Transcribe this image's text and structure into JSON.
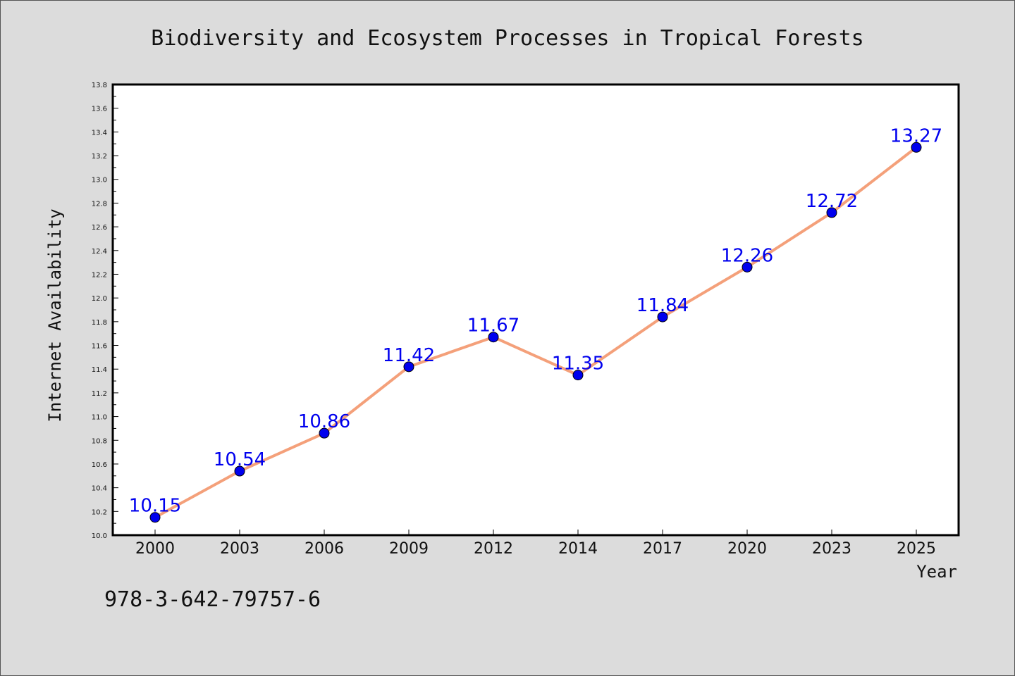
{
  "chart_data": {
    "type": "line",
    "title": "Biodiversity and Ecosystem Processes in Tropical Forests",
    "xlabel": "Year",
    "ylabel": "Internet Availability",
    "categories": [
      "2000",
      "2003",
      "2006",
      "2009",
      "2012",
      "2014",
      "2017",
      "2020",
      "2023",
      "2025"
    ],
    "series": [
      {
        "values": [
          10.15,
          10.54,
          10.86,
          11.42,
          11.67,
          11.35,
          11.84,
          12.26,
          12.72,
          13.27
        ],
        "labels": [
          "10.15",
          "10.54",
          "10.86",
          "11.42",
          "11.67",
          "11.35",
          "11.84",
          "12.26",
          "12.72",
          "13.27"
        ],
        "line_color": "#f4a07a",
        "marker_color": "#0000ee"
      }
    ],
    "ylim": [
      10.0,
      13.8
    ],
    "yticks": [
      "10.0",
      "10.2",
      "10.4",
      "10.6",
      "10.8",
      "11.0",
      "11.2",
      "11.4",
      "11.6",
      "11.8",
      "12.0",
      "12.2",
      "12.4",
      "12.6",
      "12.8",
      "13.0",
      "13.2",
      "13.4",
      "13.6",
      "13.8"
    ],
    "grid": false,
    "label_color": "#0000ee"
  },
  "footer": {
    "isbn": "978-3-642-79757-6"
  }
}
